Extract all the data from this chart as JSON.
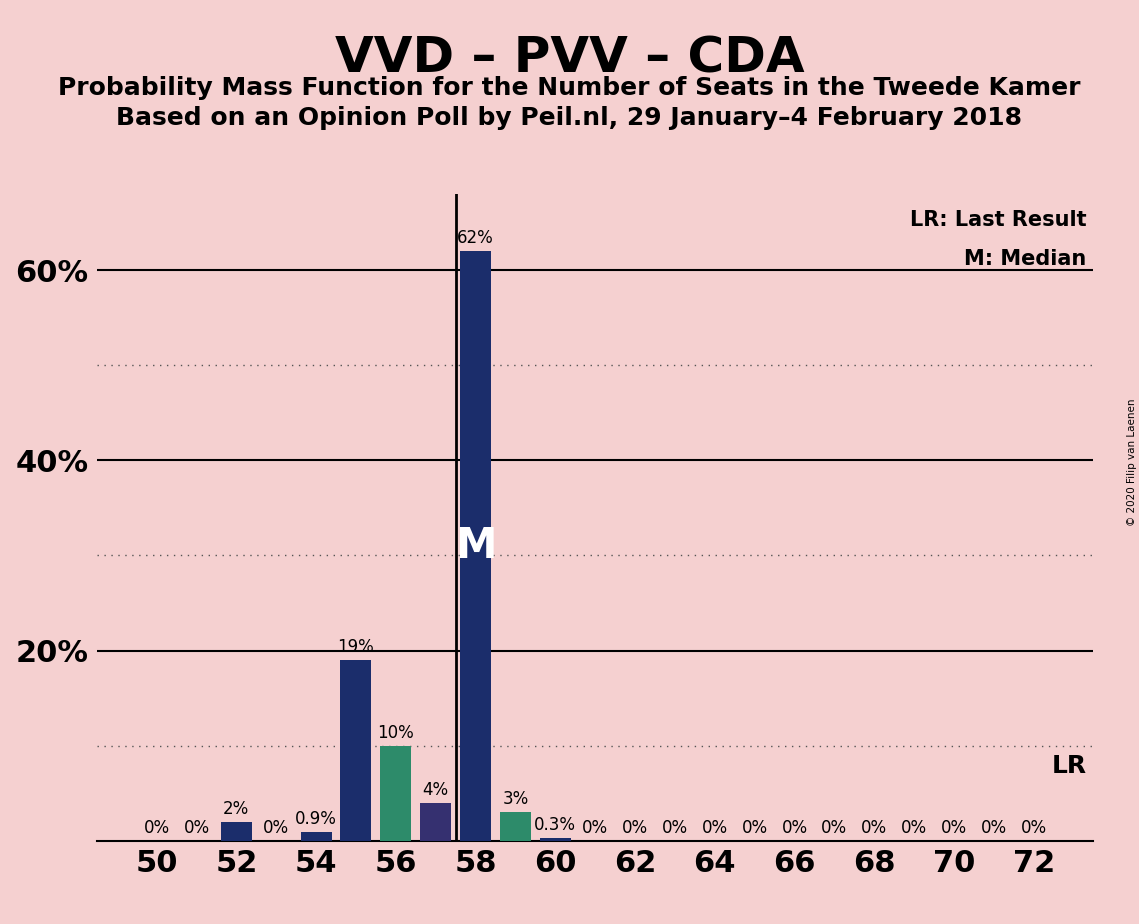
{
  "title": "VVD – PVV – CDA",
  "subtitle1": "Probability Mass Function for the Number of Seats in the Tweede Kamer",
  "subtitle2": "Based on an Opinion Poll by Peil.nl, 29 January–4 February 2018",
  "background_color": "#f5d0d0",
  "seats": [
    50,
    51,
    52,
    53,
    54,
    55,
    56,
    57,
    58,
    59,
    60,
    61,
    62,
    63,
    64,
    65,
    66,
    67,
    68,
    69,
    70,
    71,
    72
  ],
  "probabilities": [
    0.0,
    0.0,
    2.0,
    0.0,
    0.9,
    19.0,
    10.0,
    4.0,
    62.0,
    3.0,
    0.3,
    0.0,
    0.0,
    0.0,
    0.0,
    0.0,
    0.0,
    0.0,
    0.0,
    0.0,
    0.0,
    0.0,
    0.0
  ],
  "bar_colors": [
    "#1b2d6b",
    "#1b2d6b",
    "#1b2d6b",
    "#1b2d6b",
    "#1b2d6b",
    "#1b2d6b",
    "#2d8b6a",
    "#353070",
    "#1b2d6b",
    "#2d8b6a",
    "#1b2d6b",
    "#1b2d6b",
    "#1b2d6b",
    "#1b2d6b",
    "#1b2d6b",
    "#1b2d6b",
    "#1b2d6b",
    "#1b2d6b",
    "#1b2d6b",
    "#1b2d6b",
    "#1b2d6b",
    "#1b2d6b",
    "#1b2d6b"
  ],
  "prob_labels": [
    "0%",
    "0%",
    "2%",
    "0%",
    "0.9%",
    "19%",
    "10%",
    "4%",
    "62%",
    "3%",
    "0.3%",
    "0%",
    "0%",
    "0%",
    "0%",
    "0%",
    "0%",
    "0%",
    "0%",
    "0%",
    "0%",
    "0%",
    "0%"
  ],
  "xtick_positions": [
    50,
    52,
    54,
    56,
    58,
    60,
    62,
    64,
    66,
    68,
    70,
    72
  ],
  "xtick_labels": [
    "50",
    "52",
    "54",
    "56",
    "58",
    "60",
    "62",
    "64",
    "66",
    "68",
    "70",
    "72"
  ],
  "ylim": [
    0,
    68
  ],
  "xlim": [
    48.5,
    73.5
  ],
  "median_seat": 58,
  "lr_seat": 57,
  "lr_label": "LR",
  "lr_legend": "LR: Last Result",
  "m_legend": "M: Median",
  "copyright": "© 2020 Filip van Laenen",
  "bar_width": 0.78,
  "tick_fontsize": 22,
  "title_fontsize": 36,
  "subtitle_fontsize": 18,
  "annotation_fontsize": 12,
  "legend_fontsize": 15,
  "solid_line_y": [
    20,
    40,
    60
  ],
  "dotted_line_y": [
    10,
    30,
    50
  ]
}
